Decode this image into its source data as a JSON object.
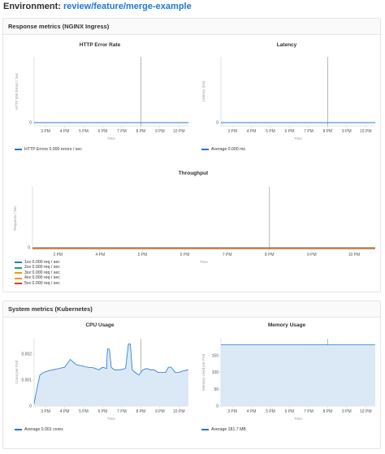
{
  "environment": {
    "label": "Environment:",
    "name": "review/feature/merge-example",
    "link_color": "#1f78d1"
  },
  "response_panel": {
    "title": "Response metrics (NGINX Ingress)"
  },
  "system_panel": {
    "title": "System metrics (Kubernetes)"
  },
  "graphs": {
    "error_rate": {
      "title": "HTTP Error Rate",
      "ylabel": "HTTP 500 Errors / Sec",
      "xlabel": "Time",
      "ytick": "0",
      "xticks": [
        "3 PM",
        "4 PM",
        "5 PM",
        "6 PM",
        "7 PM",
        "8 PM",
        "9 PM",
        "10 PM"
      ],
      "legend": [
        {
          "label": "HTTP Errors 0.000 errors / sec",
          "color": "#1f78d1"
        }
      ]
    },
    "latency": {
      "title": "Latency",
      "ylabel": "Latency (ms)",
      "xlabel": "Time",
      "ytick": "0",
      "xticks": [
        "3 PM",
        "4 PM",
        "5 PM",
        "6 PM",
        "7 PM",
        "8 PM",
        "9 PM",
        "10 PM"
      ],
      "legend": [
        {
          "label": "Average 0.000 ms",
          "color": "#1f78d1"
        }
      ]
    },
    "throughput": {
      "title": "Throughput",
      "ylabel": "Requests / Sec",
      "xlabel": "Time",
      "ytick": "0",
      "xticks": [
        "3 PM",
        "4 PM",
        "5 PM",
        "6 PM",
        "7 PM",
        "8 PM",
        "9 PM",
        "10 PM"
      ],
      "legend": [
        {
          "label": "1xx 0.000 req / sec",
          "color": "#1f78d1"
        },
        {
          "label": "2xx 0.000 req / sec",
          "color": "#1aaa55"
        },
        {
          "label": "3xx 0.000 req / sec",
          "color": "#fc9403"
        },
        {
          "label": "4xx 0.000 req / sec",
          "color": "#e6a000"
        },
        {
          "label": "5xx 0.000 req / sec",
          "color": "#db3b21"
        }
      ]
    },
    "cpu": {
      "title": "CPU Usage",
      "ylabel": "Cores per Pod",
      "xlabel": "Time",
      "yticks": [
        "0.002",
        "0.001",
        "0"
      ],
      "xticks": [
        "3 PM",
        "4 PM",
        "5 PM",
        "6 PM",
        "7 PM",
        "8 PM",
        "9 PM",
        "10 PM"
      ],
      "legend": [
        {
          "label": "Average 0.001 cores",
          "color": "#1f78d1"
        }
      ]
    },
    "memory": {
      "title": "Memory Usage",
      "ylabel": "Memory Used per Pod",
      "xlabel": "Time",
      "yticks": [
        "150",
        "100",
        "50",
        "0"
      ],
      "xticks": [
        "3 PM",
        "4 PM",
        "5 PM",
        "6 PM",
        "7 PM",
        "8 PM",
        "9 PM",
        "10 PM"
      ],
      "legend": [
        {
          "label": "Average 181.7 MB",
          "color": "#1f78d1"
        }
      ]
    }
  },
  "chart_data": [
    {
      "type": "line",
      "title": "HTTP Error Rate",
      "ylabel": "HTTP 500 Errors / Sec",
      "xlabel": "Time",
      "x": [
        14.4,
        22.5
      ],
      "series": [
        {
          "name": "HTTP Errors",
          "values": [
            0,
            0
          ]
        }
      ],
      "deploy_marker_x": 20.0
    },
    {
      "type": "line",
      "title": "Latency",
      "ylabel": "Latency (ms)",
      "xlabel": "Time",
      "x": [
        14.4,
        22.5
      ],
      "series": [
        {
          "name": "Average",
          "values": [
            0,
            0
          ]
        }
      ],
      "deploy_marker_x": 20.0
    },
    {
      "type": "line",
      "title": "Throughput",
      "ylabel": "Requests / Sec",
      "xlabel": "Time",
      "x": [
        14.4,
        22.5
      ],
      "series": [
        {
          "name": "1xx",
          "values": [
            0,
            0
          ]
        },
        {
          "name": "2xx",
          "values": [
            0,
            0
          ]
        },
        {
          "name": "3xx",
          "values": [
            0,
            0
          ]
        },
        {
          "name": "4xx",
          "values": [
            0,
            0
          ]
        },
        {
          "name": "5xx",
          "values": [
            0,
            0
          ]
        }
      ],
      "deploy_marker_x": 20.0
    },
    {
      "type": "area",
      "title": "CPU Usage",
      "ylabel": "Cores per Pod",
      "xlabel": "Time",
      "ylim": [
        0,
        0.0026
      ],
      "x": [
        14.4,
        14.5,
        14.7,
        14.9,
        15.1,
        15.4,
        15.7,
        16.0,
        16.3,
        16.6,
        16.9,
        17.2,
        17.5,
        17.8,
        18.0,
        18.2,
        18.25,
        18.35,
        18.45,
        18.6,
        18.9,
        19.2,
        19.35,
        19.45,
        19.55,
        19.7,
        19.9,
        20.1,
        20.3,
        20.5,
        20.7,
        20.9,
        21.1,
        21.3,
        21.45,
        21.6,
        21.8,
        22.0,
        22.2,
        22.5
      ],
      "series": [
        {
          "name": "Average",
          "values": [
            0.0001,
            0.0005,
            0.0012,
            0.0013,
            0.00135,
            0.0014,
            0.00145,
            0.0015,
            0.0018,
            0.0016,
            0.00155,
            0.0015,
            0.00148,
            0.0014,
            0.0015,
            0.00145,
            0.0022,
            0.0022,
            0.0015,
            0.0014,
            0.0014,
            0.00145,
            0.0024,
            0.0024,
            0.0014,
            0.0013,
            0.0012,
            0.0014,
            0.00145,
            0.0014,
            0.0014,
            0.0013,
            0.0013,
            0.0013,
            0.0015,
            0.0015,
            0.0013,
            0.0013,
            0.00135,
            0.0014
          ]
        }
      ],
      "deploy_marker_x": 20.0
    },
    {
      "type": "area",
      "title": "Memory Usage",
      "ylabel": "Memory Used per Pod",
      "xlabel": "Time",
      "ylim": [
        0,
        200
      ],
      "x": [
        14.4,
        16.0,
        18.0,
        19.5,
        20.5,
        22.5
      ],
      "series": [
        {
          "name": "Average",
          "values": [
            181.7,
            181.7,
            181.7,
            182.0,
            181.7,
            181.7
          ]
        }
      ],
      "deploy_marker_x": 20.0
    }
  ]
}
